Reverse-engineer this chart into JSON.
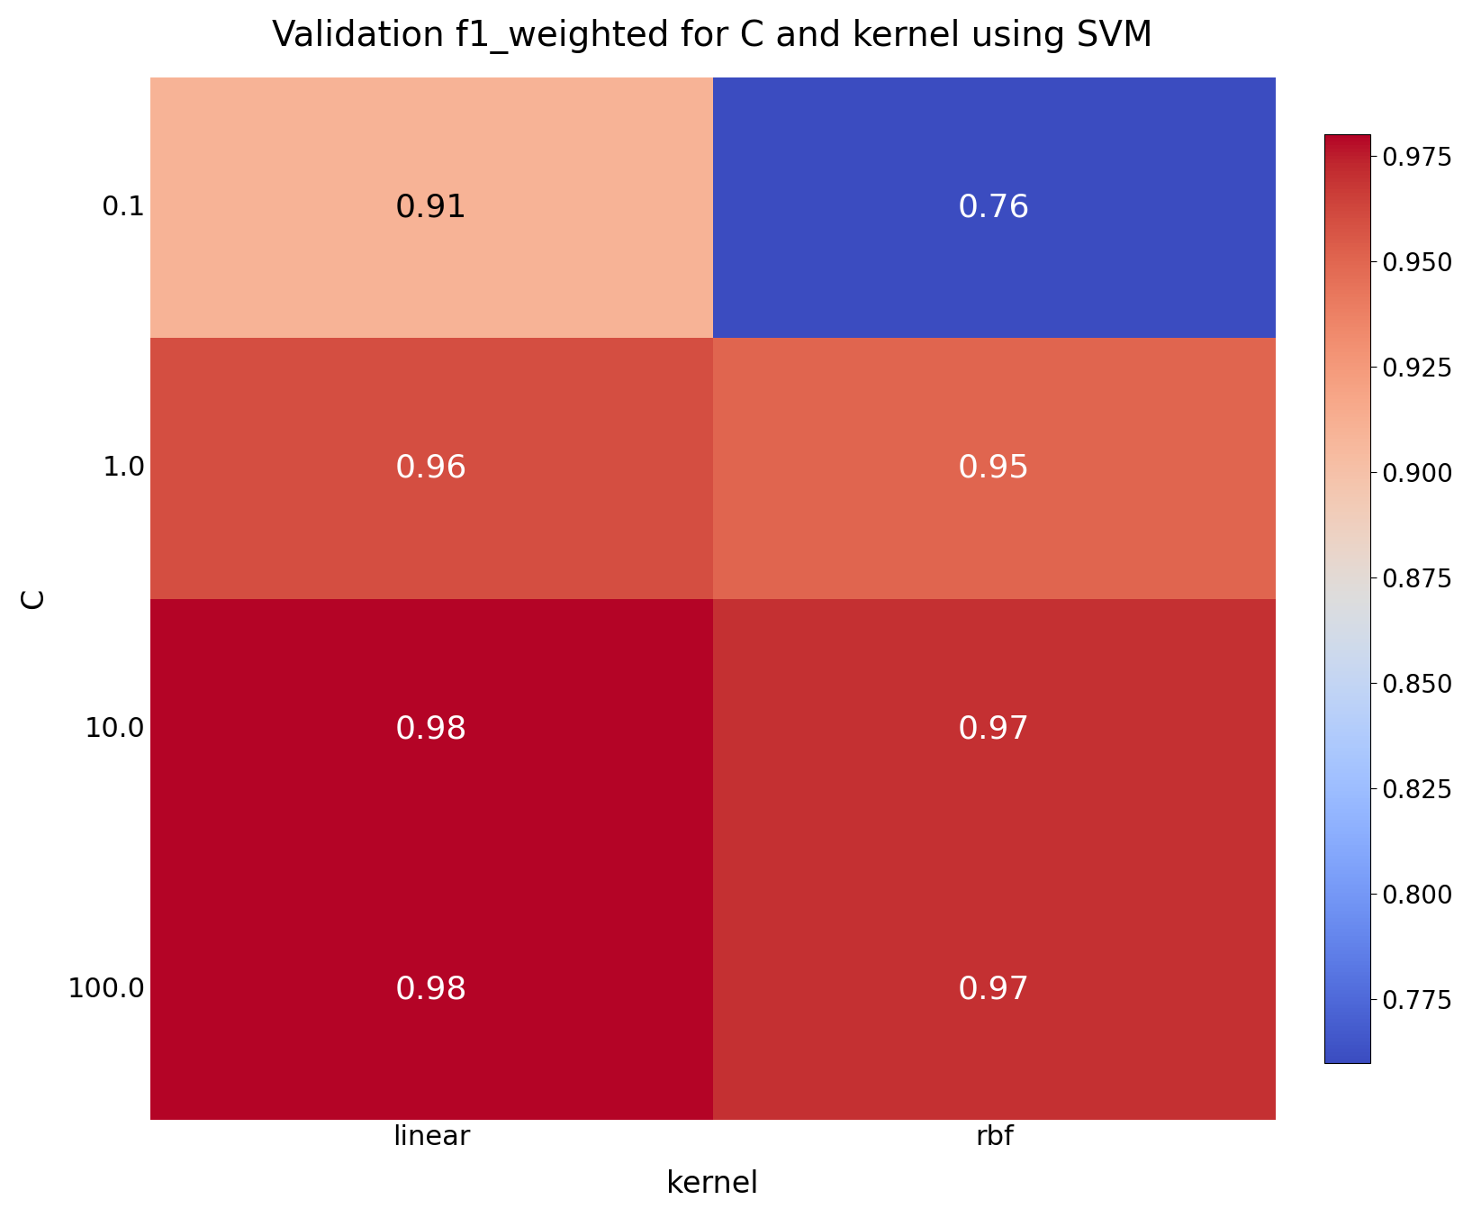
{
  "title": "Validation f1_weighted for C and kernel using SVM",
  "xlabel": "kernel",
  "ylabel": "C",
  "x_labels": [
    "linear",
    "rbf"
  ],
  "y_labels": [
    "0.1",
    "1.0",
    "10.0",
    "100.0"
  ],
  "values": [
    [
      0.91,
      0.76
    ],
    [
      0.96,
      0.95
    ],
    [
      0.98,
      0.97
    ],
    [
      0.98,
      0.97
    ]
  ],
  "vmin": 0.76,
  "vmax": 0.98,
  "cmap_vmin": 0.76,
  "cmap_vmax": 0.98,
  "colorbar_ticks": [
    0.775,
    0.8,
    0.825,
    0.85,
    0.875,
    0.9,
    0.925,
    0.95,
    0.975
  ],
  "cmap": "coolwarm",
  "title_fontsize": 28,
  "label_fontsize": 24,
  "tick_fontsize": 22,
  "annot_fontsize": 26,
  "colorbar_fontsize": 20,
  "annot_colors": [
    [
      "black",
      "white"
    ],
    [
      "white",
      "white"
    ],
    [
      "white",
      "white"
    ],
    [
      "white",
      "white"
    ]
  ],
  "background_color": "#ffffff"
}
